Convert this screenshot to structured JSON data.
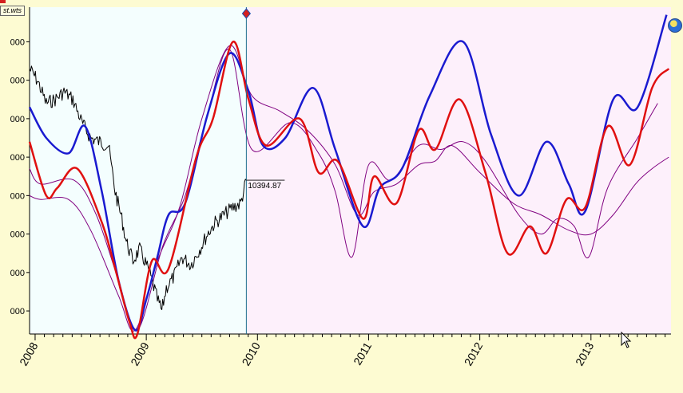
{
  "window": {
    "file_tab": "st.wts"
  },
  "icons": {
    "globe": "globe-icon",
    "cursor": "mouse-pointer-icon",
    "marker": "diamond-marker-icon"
  },
  "colors": {
    "history_bg": "#f4fefe",
    "forecast_bg": "#fdf0fb",
    "page_bg": "#fdfbd2",
    "price": "#000000",
    "blue": "#1a1ad0",
    "red": "#e01010",
    "purple": "#800080"
  },
  "chart_data": {
    "type": "line",
    "title": "",
    "xlabel": "",
    "ylabel": "",
    "xlim": [
      2007.95,
      2013.72
    ],
    "ylim": [
      6400,
      14900
    ],
    "x_ticks": [
      2008,
      2009,
      2010,
      2011,
      2012,
      2013
    ],
    "x_tick_labels": [
      "2008",
      "2009",
      "2010",
      "2011",
      "2012",
      "2013"
    ],
    "y_ticks": [
      14000,
      13000,
      12000,
      11000,
      10000,
      9000,
      8000,
      7000
    ],
    "y_tick_labels": [
      "000",
      "000",
      "000",
      "000",
      "000",
      "000",
      "000",
      "000"
    ],
    "forecast_start": 2009.9,
    "last_value_label": "10394.87",
    "grid": false,
    "legend": "none",
    "series": [
      {
        "color": "#000000",
        "kind": "price",
        "x": [
          2007.95,
          2008.02,
          2008.1,
          2008.18,
          2008.26,
          2008.34,
          2008.42,
          2008.5,
          2008.58,
          2008.66,
          2008.72,
          2008.78,
          2008.82,
          2008.88,
          2008.94,
          2009.0,
          2009.05,
          2009.1,
          2009.14,
          2009.18,
          2009.25,
          2009.32,
          2009.4,
          2009.48,
          2009.55,
          2009.62,
          2009.7,
          2009.78,
          2009.85,
          2009.9
        ],
        "y": [
          13300,
          13000,
          12400,
          12500,
          12700,
          12500,
          11900,
          11500,
          11400,
          11300,
          10100,
          9400,
          8800,
          8300,
          8600,
          8200,
          7800,
          7300,
          7000,
          7600,
          7900,
          8400,
          8200,
          8600,
          9000,
          9300,
          9500,
          9700,
          9800,
          10400
        ]
      },
      {
        "color": "#1a1ad0",
        "kind": "blue",
        "x": [
          2007.95,
          2008.1,
          2008.3,
          2008.45,
          2008.6,
          2008.75,
          2008.9,
          2009.0,
          2009.1,
          2009.2,
          2009.35,
          2009.55,
          2009.75,
          2009.92,
          2010.05,
          2010.25,
          2010.5,
          2010.7,
          2010.95,
          2011.1,
          2011.3,
          2011.55,
          2011.85,
          2012.1,
          2012.35,
          2012.6,
          2012.8,
          2012.95,
          2013.2,
          2013.42,
          2013.68
        ],
        "y": [
          12300,
          11500,
          11100,
          11800,
          10100,
          7800,
          6500,
          7300,
          8400,
          9500,
          9800,
          12100,
          13700,
          12700,
          11300,
          11500,
          12800,
          11200,
          9200,
          10200,
          10700,
          12600,
          14000,
          11600,
          10000,
          11400,
          10300,
          9600,
          12500,
          12300,
          14700
        ]
      },
      {
        "color": "#e01010",
        "kind": "red",
        "x": [
          2007.95,
          2008.1,
          2008.2,
          2008.38,
          2008.6,
          2008.72,
          2008.85,
          2008.92,
          2009.05,
          2009.2,
          2009.45,
          2009.6,
          2009.78,
          2009.92,
          2010.08,
          2010.38,
          2010.55,
          2010.72,
          2010.95,
          2011.05,
          2011.25,
          2011.45,
          2011.6,
          2011.82,
          2012.05,
          2012.25,
          2012.45,
          2012.6,
          2012.78,
          2012.95,
          2013.15,
          2013.35,
          2013.55,
          2013.7
        ],
        "y": [
          11400,
          10000,
          10200,
          10700,
          9300,
          8100,
          6700,
          6400,
          8300,
          8100,
          11000,
          12000,
          14000,
          12500,
          11300,
          12000,
          10600,
          10900,
          9400,
          10500,
          9800,
          11700,
          11200,
          12500,
          10600,
          8500,
          9200,
          8500,
          9900,
          9700,
          11800,
          10800,
          12800,
          13300
        ]
      },
      {
        "color": "#800080",
        "kind": "purple",
        "x": [
          2007.95,
          2008.05,
          2008.35,
          2008.55,
          2008.75,
          2008.92,
          2009.15,
          2009.35,
          2009.55,
          2009.75,
          2009.95,
          2010.3,
          2010.55,
          2010.7,
          2010.85,
          2011.0,
          2011.2,
          2011.45,
          2011.65,
          2011.85,
          2012.05,
          2012.35,
          2012.55,
          2012.7,
          2012.85,
          2012.98,
          2013.15,
          2013.42,
          2013.6
        ],
        "y": [
          10700,
          10300,
          10400,
          9500,
          7800,
          6500,
          8700,
          10000,
          12100,
          13800,
          11200,
          11900,
          11100,
          10100,
          8400,
          10800,
          10400,
          11300,
          11200,
          11400,
          10900,
          9500,
          9000,
          9400,
          9200,
          8400,
          10200,
          11500,
          12400
        ]
      },
      {
        "color": "#800080",
        "kind": "purple_thin",
        "x": [
          2007.95,
          2008.05,
          2008.3,
          2008.5,
          2008.75,
          2008.9,
          2009.1,
          2009.3,
          2009.5,
          2009.75,
          2009.95,
          2010.2,
          2010.45,
          2010.7,
          2010.9,
          2011.05,
          2011.25,
          2011.45,
          2011.6,
          2011.75,
          2012.0,
          2012.3,
          2012.55,
          2012.8,
          2013.0,
          2013.2,
          2013.4,
          2013.55,
          2013.7
        ],
        "y": [
          10000,
          9900,
          9900,
          9100,
          7400,
          6500,
          8300,
          9700,
          12000,
          13900,
          12600,
          12200,
          11700,
          10800,
          9500,
          10100,
          10300,
          10800,
          10900,
          11300,
          10600,
          9800,
          9500,
          9100,
          9000,
          9500,
          10300,
          10700,
          11000
        ]
      }
    ]
  }
}
